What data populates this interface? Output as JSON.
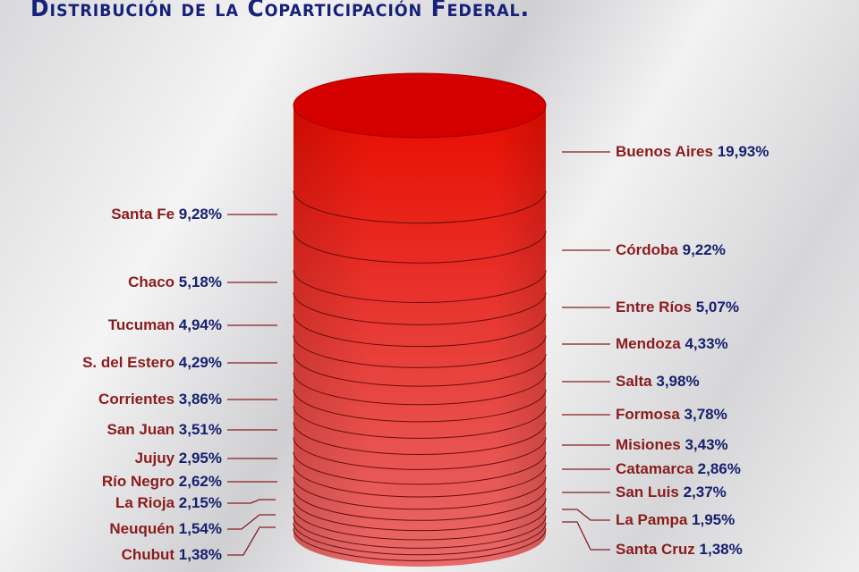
{
  "chart_data": {
    "type": "stacked-cylinder",
    "title": "Distribución de la Coparticipación Federal.",
    "unit": "%",
    "colors": {
      "top": "#d40000",
      "body_top": "#e80c00",
      "body_bottom": "#e86a6a",
      "name_text": "#8a1c1c",
      "value_text": "#17206e"
    },
    "right_labels": [
      {
        "name": "Buenos Aires",
        "value": 19.93,
        "text": "19,93%"
      },
      {
        "name": "Córdoba",
        "value": 9.22,
        "text": "9,22%"
      },
      {
        "name": "Entre Ríos",
        "value": 5.07,
        "text": "5,07%"
      },
      {
        "name": "Mendoza",
        "value": 4.33,
        "text": "4,33%"
      },
      {
        "name": "Salta",
        "value": 3.98,
        "text": "3,98%"
      },
      {
        "name": "Formosa",
        "value": 3.78,
        "text": "3,78%"
      },
      {
        "name": "Misiones",
        "value": 3.43,
        "text": "3,43%"
      },
      {
        "name": "Catamarca",
        "value": 2.86,
        "text": "2,86%"
      },
      {
        "name": "San Luis",
        "value": 2.37,
        "text": "2,37%"
      },
      {
        "name": "La Pampa",
        "value": 1.95,
        "text": "1,95%"
      },
      {
        "name": "Santa Cruz",
        "value": 1.38,
        "text": "1,38%"
      }
    ],
    "left_labels": [
      {
        "name": "Santa Fe",
        "value": 9.28,
        "text": "9,28%"
      },
      {
        "name": "Chaco",
        "value": 5.18,
        "text": "5,18%"
      },
      {
        "name": "Tucuman",
        "value": 4.94,
        "text": "4,94%"
      },
      {
        "name": "S. del Estero",
        "value": 4.29,
        "text": "4,29%"
      },
      {
        "name": "Corrientes",
        "value": 3.86,
        "text": "3,86%"
      },
      {
        "name": "San Juan",
        "value": 3.51,
        "text": "3,51%"
      },
      {
        "name": "Jujuy",
        "value": 2.95,
        "text": "2,95%"
      },
      {
        "name": "Río Negro",
        "value": 2.62,
        "text": "2,62%"
      },
      {
        "name": "La Rioja",
        "value": 2.15,
        "text": "2,15%"
      },
      {
        "name": "Neuquén",
        "value": 1.54,
        "text": "1,54%"
      },
      {
        "name": "Chubut",
        "value": 1.38,
        "text": "1,38%"
      }
    ]
  }
}
